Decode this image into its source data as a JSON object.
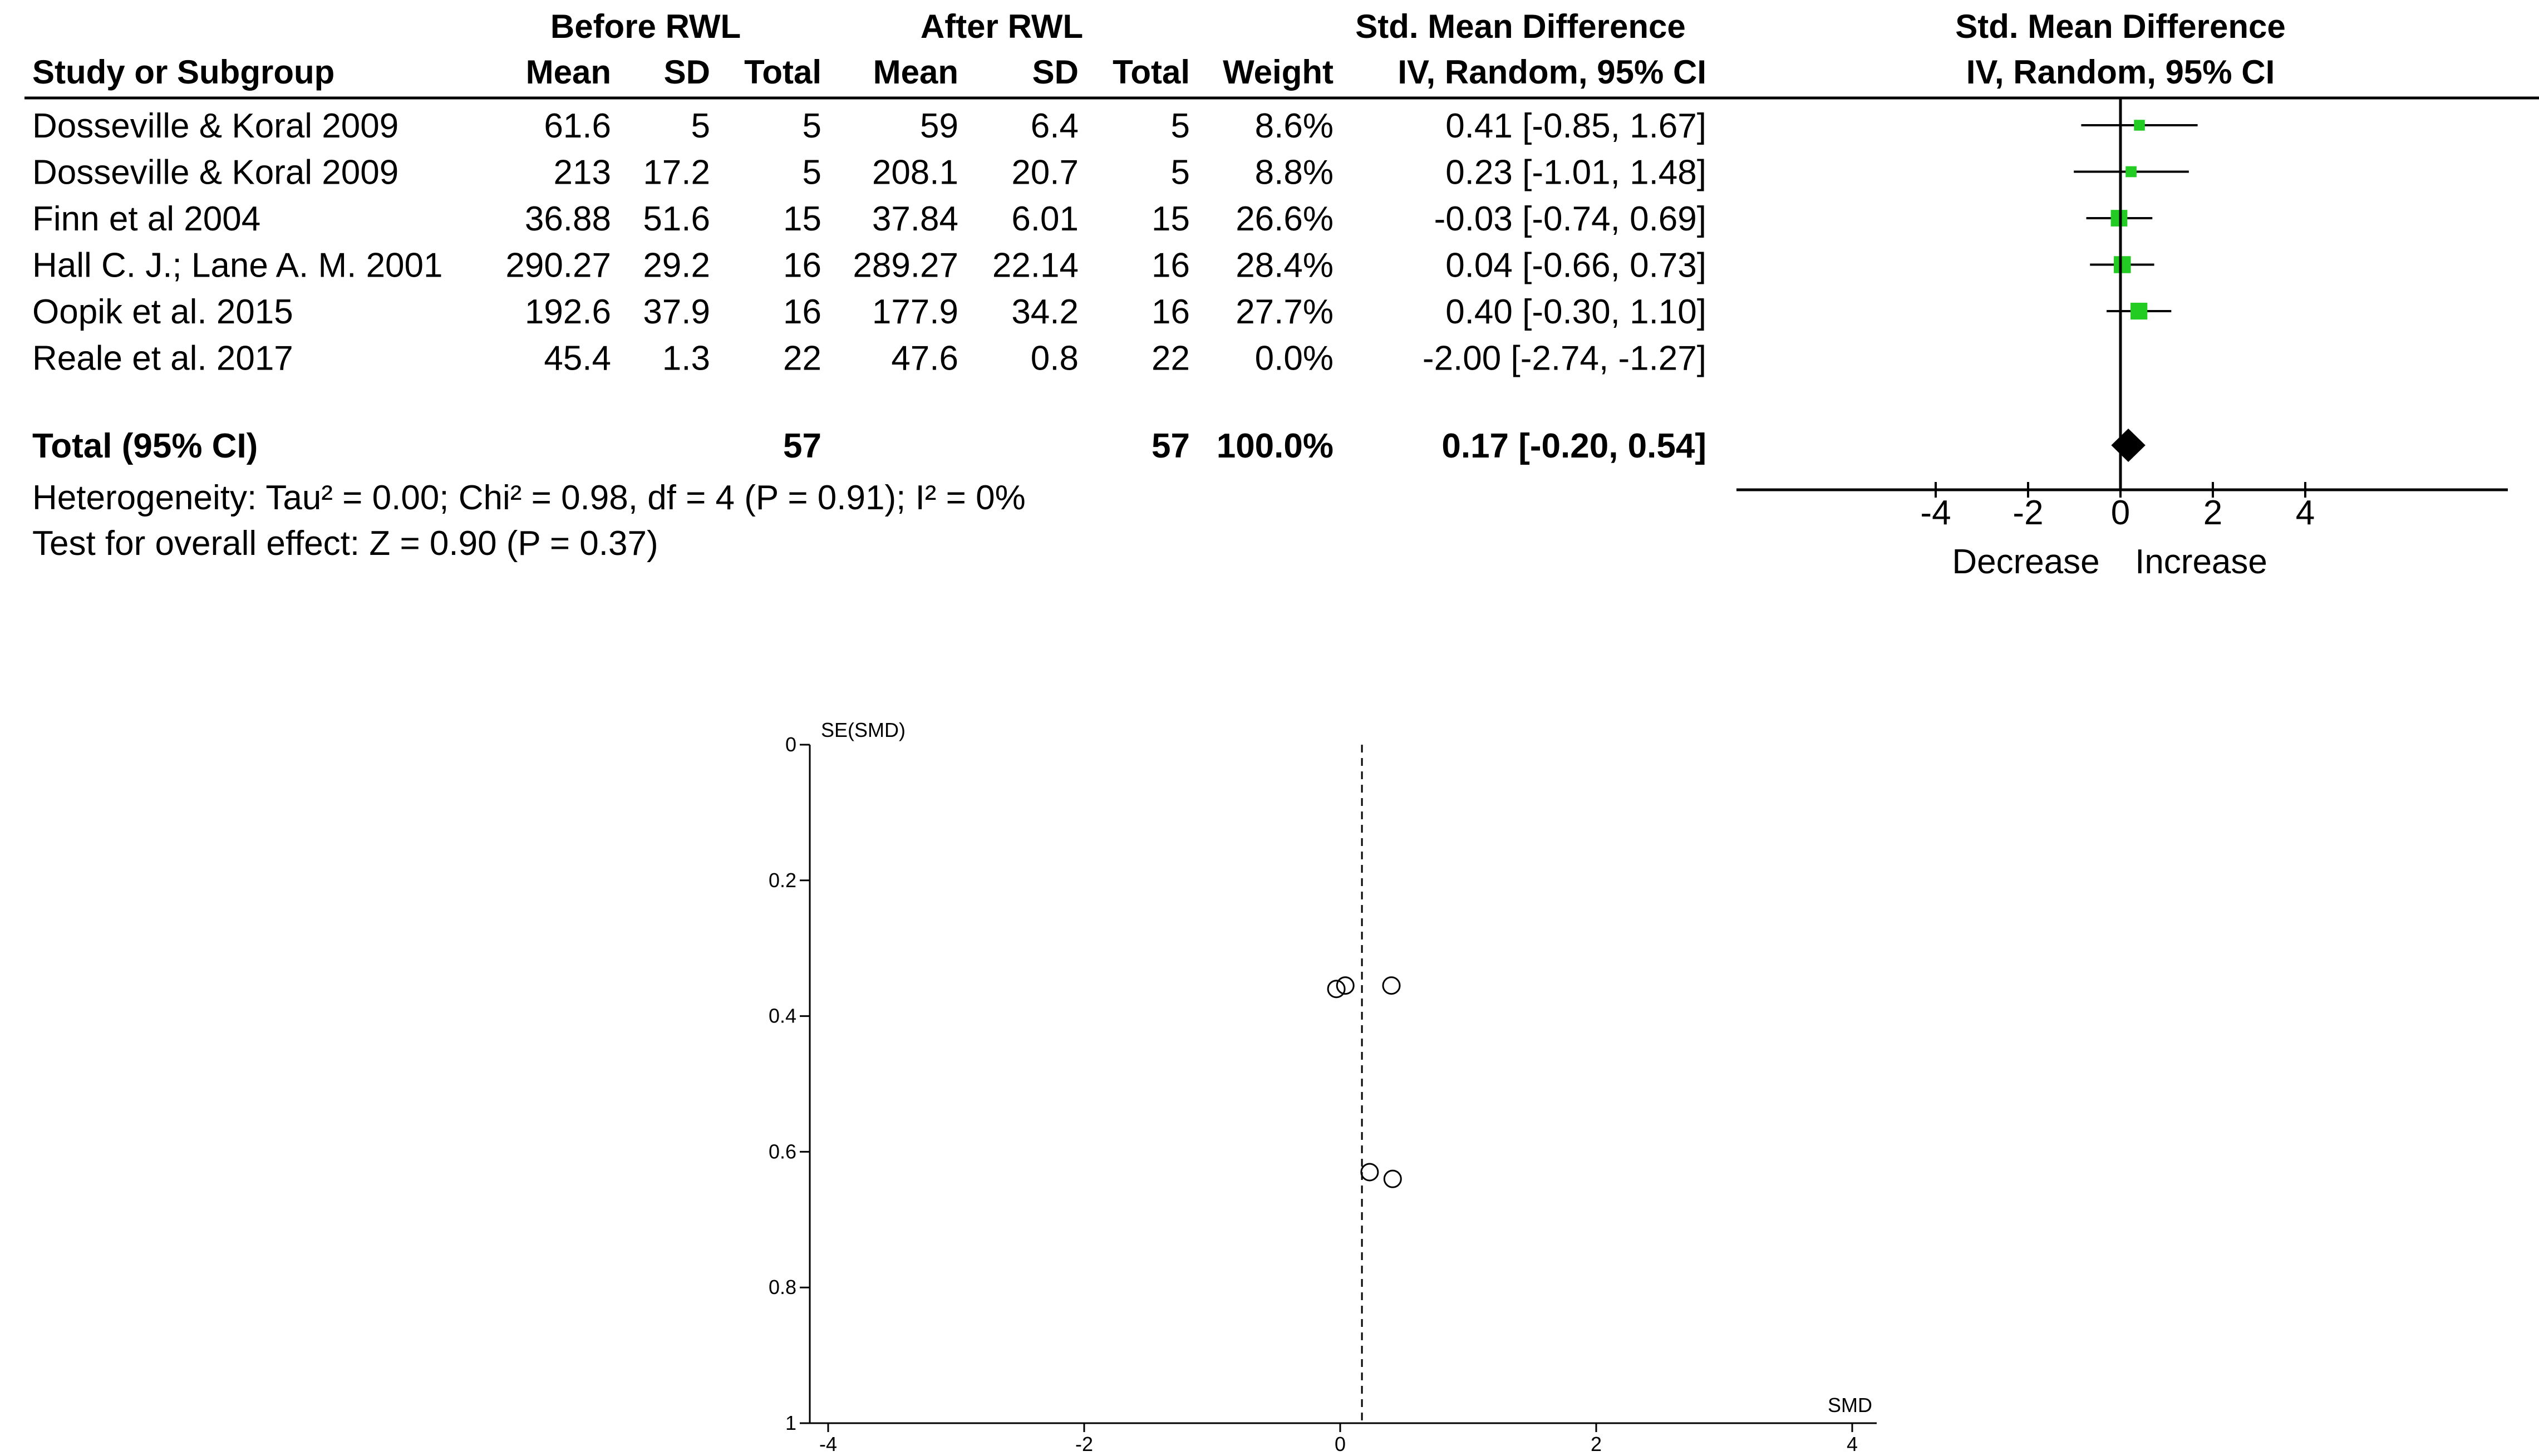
{
  "chart_data": [
    {
      "type": "table",
      "header": {
        "group_before": "Before RWL",
        "group_after": "After RWL",
        "group_smd": "Std. Mean Difference",
        "plot_title": "Std. Mean Difference",
        "study_col": "Study or Subgroup",
        "mean": "Mean",
        "sd": "SD",
        "total": "Total",
        "weight": "Weight",
        "method": "IV, Random, 95% CI",
        "plot_method": "IV, Random, 95% CI"
      },
      "rows": [
        {
          "study": "Dosseville & Koral 2009",
          "before_mean": "61.6",
          "before_sd": "5",
          "before_total": "5",
          "after_mean": "59",
          "after_sd": "6.4",
          "after_total": "5",
          "weight": "8.6%",
          "ci_text": "0.41 [-0.85, 1.67]",
          "smd": 0.41,
          "lo": -0.85,
          "hi": 1.67,
          "w": 8.6
        },
        {
          "study": "Dosseville & Koral 2009",
          "before_mean": "213",
          "before_sd": "17.2",
          "before_total": "5",
          "after_mean": "208.1",
          "after_sd": "20.7",
          "after_total": "5",
          "weight": "8.8%",
          "ci_text": "0.23 [-1.01, 1.48]",
          "smd": 0.23,
          "lo": -1.01,
          "hi": 1.48,
          "w": 8.8
        },
        {
          "study": "Finn et al 2004",
          "before_mean": "36.88",
          "before_sd": "51.6",
          "before_total": "15",
          "after_mean": "37.84",
          "after_sd": "6.01",
          "after_total": "15",
          "weight": "26.6%",
          "ci_text": "-0.03 [-0.74, 0.69]",
          "smd": -0.03,
          "lo": -0.74,
          "hi": 0.69,
          "w": 26.6
        },
        {
          "study": "Hall C. J.; Lane A. M. 2001",
          "before_mean": "290.27",
          "before_sd": "29.2",
          "before_total": "16",
          "after_mean": "289.27",
          "after_sd": "22.14",
          "after_total": "16",
          "weight": "28.4%",
          "ci_text": "0.04 [-0.66, 0.73]",
          "smd": 0.04,
          "lo": -0.66,
          "hi": 0.73,
          "w": 28.4
        },
        {
          "study": "Oopik et al. 2015",
          "before_mean": "192.6",
          "before_sd": "37.9",
          "before_total": "16",
          "after_mean": "177.9",
          "after_sd": "34.2",
          "after_total": "16",
          "weight": "27.7%",
          "ci_text": "0.40 [-0.30, 1.10]",
          "smd": 0.4,
          "lo": -0.3,
          "hi": 1.1,
          "w": 27.7
        },
        {
          "study": "Reale et al. 2017",
          "before_mean": "45.4",
          "before_sd": "1.3",
          "before_total": "22",
          "after_mean": "47.6",
          "after_sd": "0.8",
          "after_total": "22",
          "weight": "0.0%",
          "ci_text": "-2.00 [-2.74, -1.27]",
          "smd": -2.0,
          "lo": -2.74,
          "hi": -1.27,
          "w": 0.0
        }
      ],
      "total": {
        "label": "Total (95% CI)",
        "before_total": "57",
        "after_total": "57",
        "weight": "100.0%",
        "ci_text": "0.17 [-0.20, 0.54]",
        "smd": 0.17,
        "lo": -0.2,
        "hi": 0.54
      },
      "heterogeneity": "Heterogeneity: Tau² = 0.00; Chi² = 0.98, df = 4 (P = 0.91); I² = 0%",
      "overall_effect": "Test for overall effect: Z = 0.90 (P = 0.37)",
      "x_axis": {
        "range": [
          -5,
          5
        ],
        "ticks": [
          -4,
          -2,
          0,
          2,
          4
        ],
        "tick_labels": [
          "-4",
          "-2",
          "0",
          "2",
          "4"
        ],
        "left_label": "Decrease",
        "right_label": "Increase"
      },
      "marker_color": "#22cc22"
    },
    {
      "type": "scatter",
      "title": "",
      "xlabel": "SMD",
      "ylabel": "SE(SMD)",
      "xlim": [
        -8.5,
        8.5
      ],
      "ylim": [
        0,
        1
      ],
      "y_inverted": true,
      "x_ticks": [
        -4,
        -2,
        0,
        2,
        4
      ],
      "x_tick_labels": [
        "-4",
        "-2",
        "0",
        "2",
        "4"
      ],
      "y_ticks": [
        0,
        0.2,
        0.4,
        0.6,
        0.8,
        1
      ],
      "y_tick_labels": [
        "0",
        "0.2",
        "0.4",
        "0.6",
        "0.8",
        "1"
      ],
      "reference_x": 0.17,
      "points": [
        {
          "x": -0.03,
          "y": 0.36
        },
        {
          "x": 0.04,
          "y": 0.355
        },
        {
          "x": 0.4,
          "y": 0.355
        },
        {
          "x": 0.41,
          "y": 0.64
        },
        {
          "x": 0.23,
          "y": 0.63
        }
      ]
    }
  ]
}
